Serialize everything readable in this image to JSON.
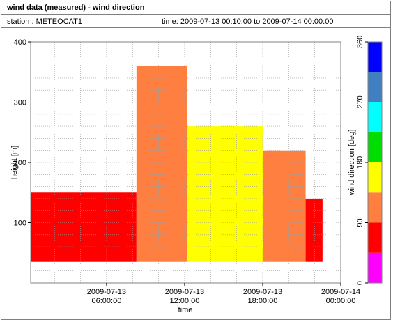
{
  "header": {
    "title": "wind data (measured) - wind direction",
    "station": "station : METEOCAT1",
    "time_range": "time: 2009-07-13 00:10:00 to 2009-07-14 00:00:00"
  },
  "chart_data": {
    "type": "heatmap",
    "xlabel": "time",
    "ylabel": "height [m]",
    "colorbar_label": "wind direction [deg]",
    "x_range": [
      "2009-07-13 00:10:00",
      "2009-07-14 00:00:00"
    ],
    "ylim": [
      0,
      400
    ],
    "x_ticks": [
      {
        "line1": "2009-07-13",
        "line2": "06:00:00",
        "hours": 6
      },
      {
        "line1": "2009-07-13",
        "line2": "12:00:00",
        "hours": 12
      },
      {
        "line1": "2009-07-13",
        "line2": "18:00:00",
        "hours": 18
      },
      {
        "line1": "2009-07-14",
        "line2": "00:00:00",
        "hours": 24
      }
    ],
    "y_ticks": [
      100,
      200,
      300,
      400
    ],
    "colorbar_ticks": [
      0,
      90,
      180,
      270,
      360
    ],
    "color_bins": [
      {
        "from": 0,
        "to": 45,
        "color": "#ff00ff"
      },
      {
        "from": 45,
        "to": 90,
        "color": "#ff0000"
      },
      {
        "from": 90,
        "to": 135,
        "color": "#ff7f40"
      },
      {
        "from": 135,
        "to": 180,
        "color": "#ffff00"
      },
      {
        "from": 180,
        "to": 225,
        "color": "#00dd00"
      },
      {
        "from": 225,
        "to": 270,
        "color": "#00ffff"
      },
      {
        "from": 270,
        "to": 315,
        "color": "#4080c0"
      },
      {
        "from": 315,
        "to": 360,
        "color": "#0000ff"
      }
    ],
    "min_height": 35,
    "blocks": [
      {
        "t0": 0.0,
        "t1": 8.3,
        "h0": 35,
        "h1": 150,
        "color": "#ff0000"
      },
      {
        "t0": 8.3,
        "t1": 12.2,
        "h0": 35,
        "h1": 360,
        "color": "#ff7f40"
      },
      {
        "t0": 12.2,
        "t1": 18.0,
        "h0": 35,
        "h1": 260,
        "color": "#ffff00"
      },
      {
        "t0": 18.0,
        "t1": 21.3,
        "h0": 35,
        "h1": 220,
        "color": "#ff7f40"
      },
      {
        "t0": 21.3,
        "t1": 22.6,
        "h0": 35,
        "h1": 140,
        "color": "#ff0000"
      }
    ]
  }
}
